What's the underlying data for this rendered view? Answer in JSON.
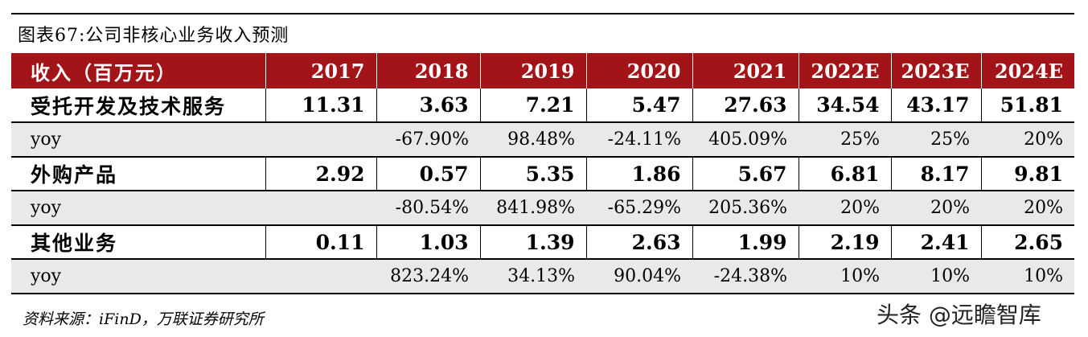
{
  "title": "图表67:公司非核心业务收入预测",
  "table": {
    "header": [
      "收入（百万元）",
      "2017",
      "2018",
      "2019",
      "2020",
      "2021",
      "2022E",
      "2023E",
      "2024E"
    ],
    "rows": [
      {
        "kind": "main",
        "cells": [
          "受托开发及技术服务",
          "11.31",
          "3.63",
          "7.21",
          "5.47",
          "27.63",
          "34.54",
          "43.17",
          "51.81"
        ]
      },
      {
        "kind": "yoy",
        "cells": [
          "yoy",
          "",
          "-67.90%",
          "98.48%",
          "-24.11%",
          "405.09%",
          "25%",
          "25%",
          "20%"
        ]
      },
      {
        "kind": "main",
        "cells": [
          "外购产品",
          "2.92",
          "0.57",
          "5.35",
          "1.86",
          "5.67",
          "6.81",
          "8.17",
          "9.81"
        ]
      },
      {
        "kind": "yoy",
        "cells": [
          "yoy",
          "",
          "-80.54%",
          "841.98%",
          "-65.29%",
          "205.36%",
          "20%",
          "20%",
          "20%"
        ]
      },
      {
        "kind": "main",
        "cells": [
          "其他业务",
          "0.11",
          "1.03",
          "1.39",
          "2.63",
          "1.99",
          "2.19",
          "2.41",
          "2.65"
        ]
      },
      {
        "kind": "yoy",
        "cells": [
          "yoy",
          "",
          "823.24%",
          "34.13%",
          "90.04%",
          "-24.38%",
          "10%",
          "10%",
          "10%"
        ]
      }
    ]
  },
  "source": "资料来源：iFinD，万联证券研究所",
  "watermark": "头条 @远瞻智库",
  "colors": {
    "header_bg": "#a31418",
    "yoy_bg": "#e9e9e9"
  }
}
